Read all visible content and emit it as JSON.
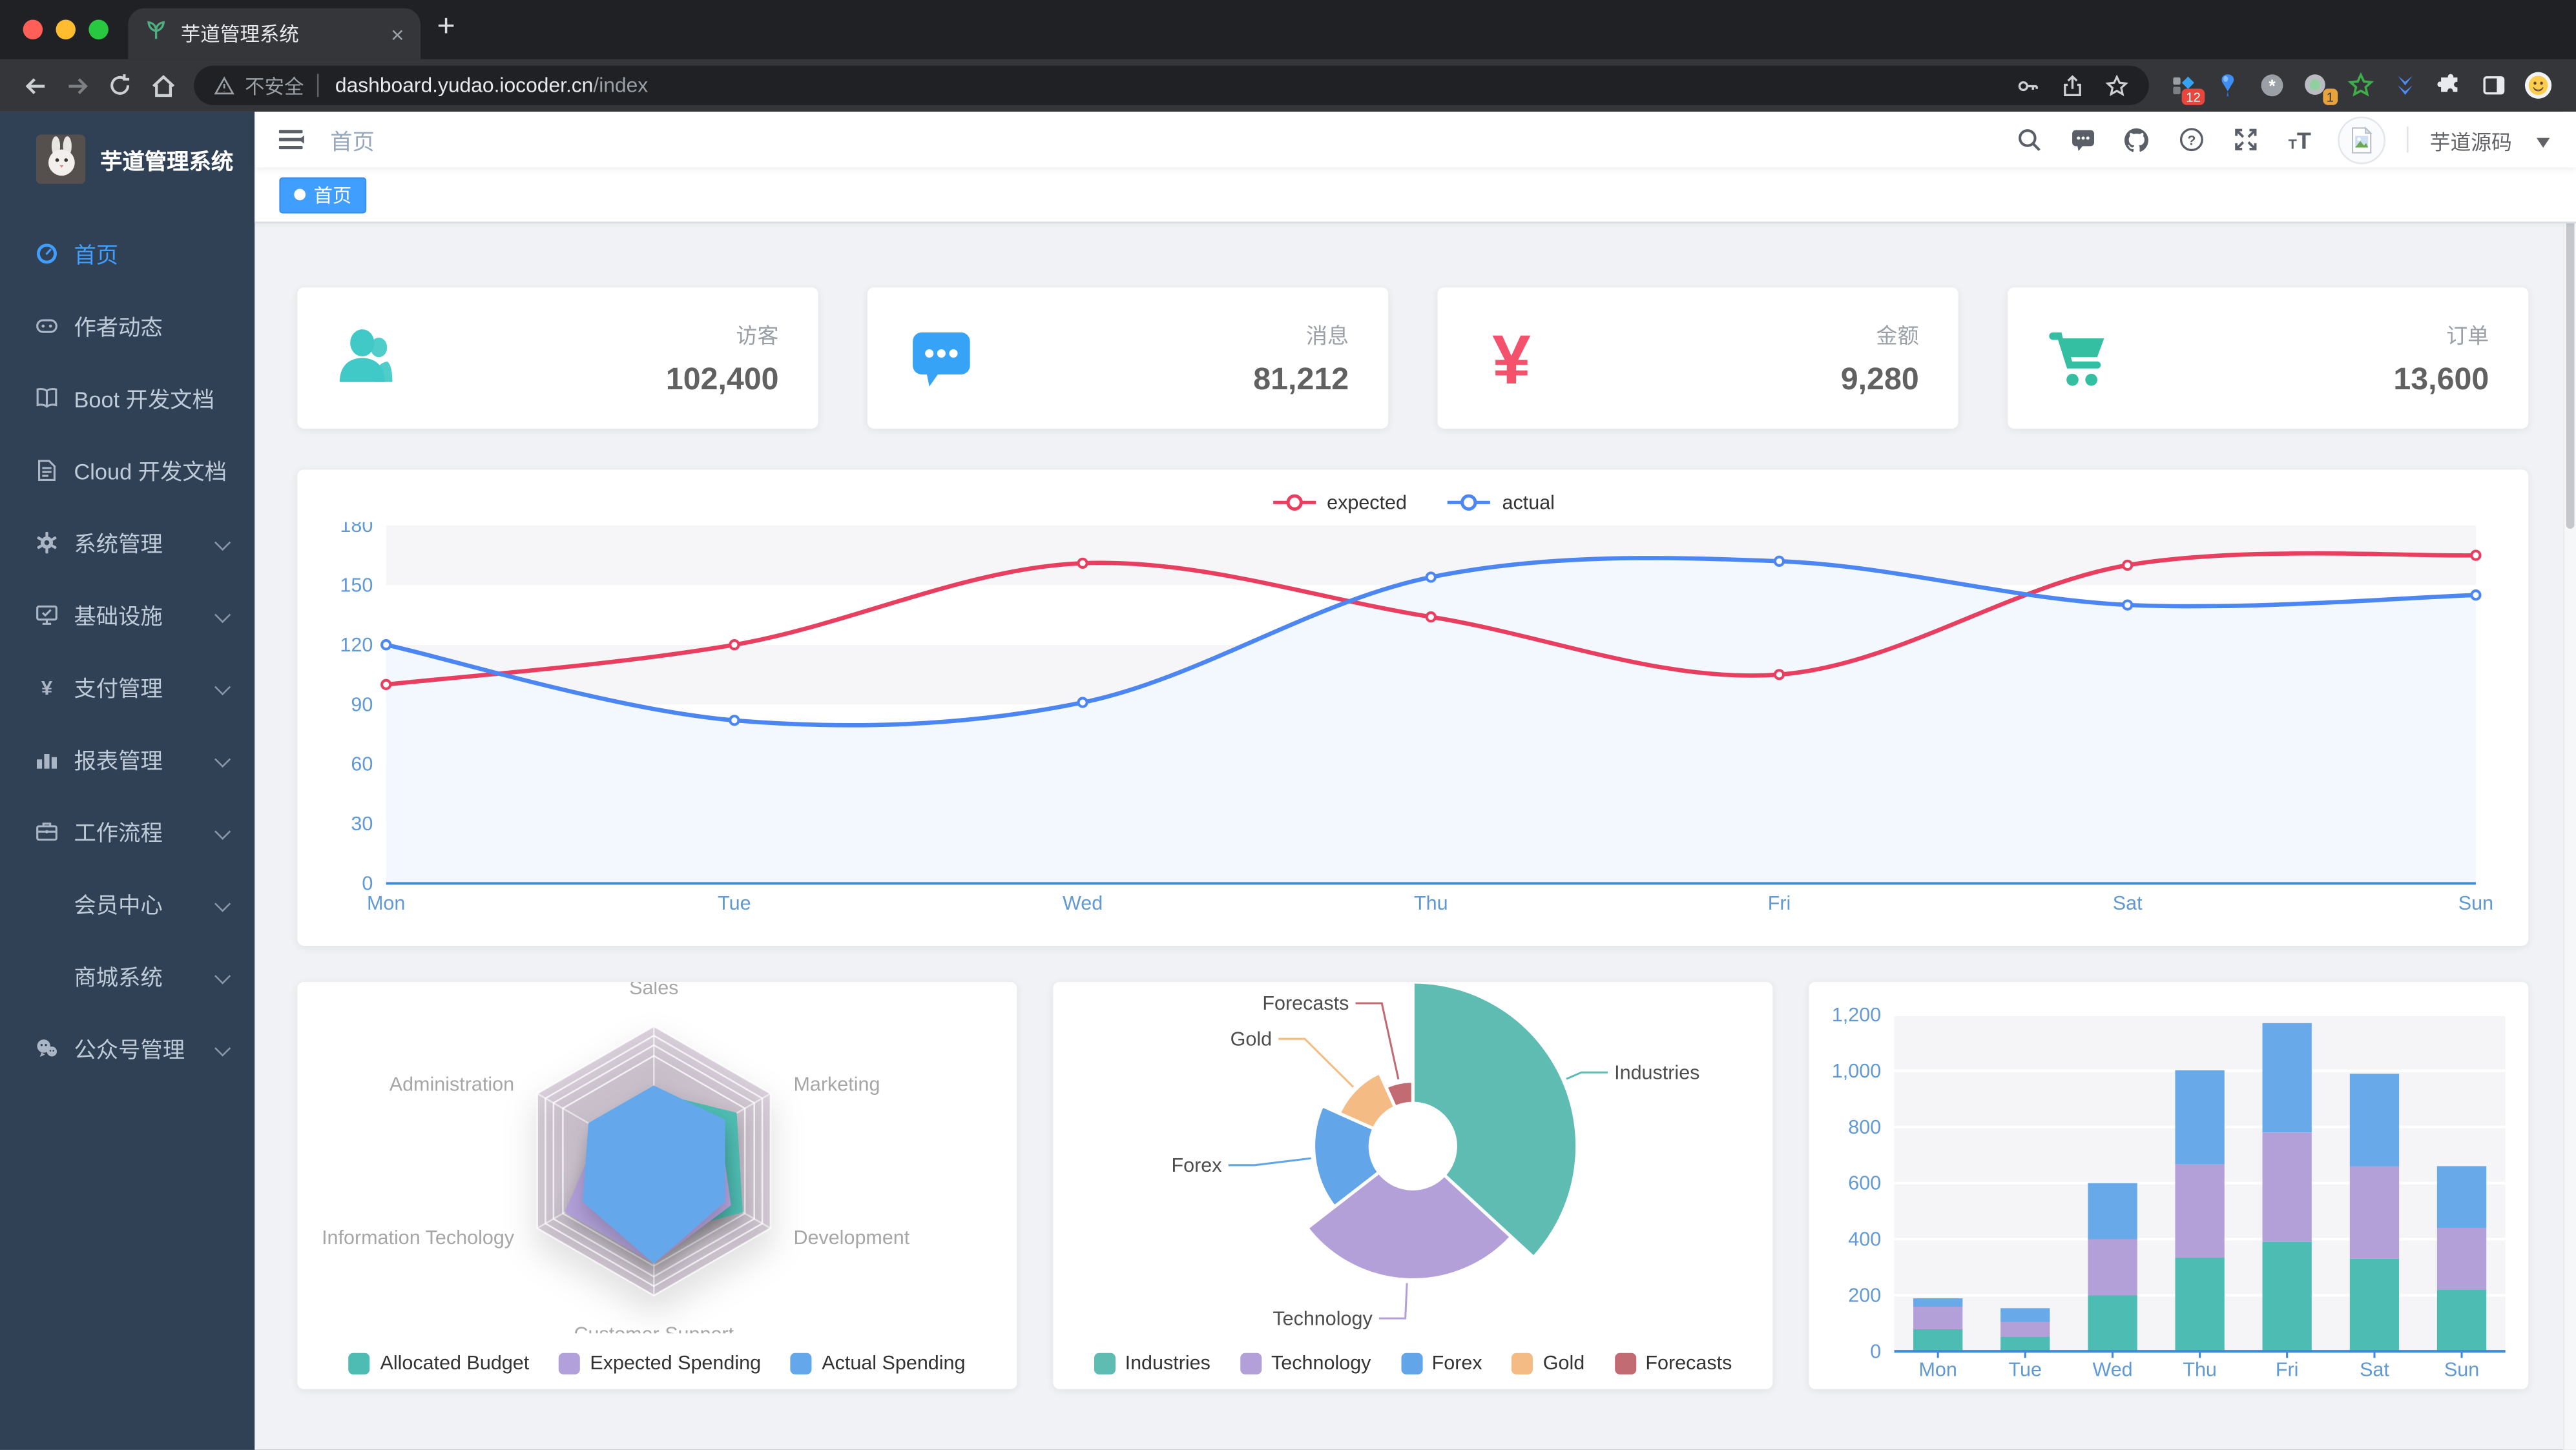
{
  "browser": {
    "tab_title": "芋道管理系统",
    "close_tab": "×",
    "new_tab": "+",
    "security_label": "不安全",
    "url_host": "dashboard.yudao.iocoder.cn",
    "url_path": "/index",
    "ext_badge_1": "12",
    "ext_badge_2": "1"
  },
  "sidebar": {
    "logo_title": "芋道管理系统",
    "active_color": "#409eff",
    "items": [
      {
        "label": "首页",
        "icon": "dashboard-icon",
        "active": true,
        "children": false
      },
      {
        "label": "作者动态",
        "icon": "people-icon",
        "active": false,
        "children": false
      },
      {
        "label": "Boot 开发文档",
        "icon": "book-icon",
        "active": false,
        "children": false
      },
      {
        "label": "Cloud 开发文档",
        "icon": "document-icon",
        "active": false,
        "children": false
      },
      {
        "label": "系统管理",
        "icon": "gear-icon",
        "active": false,
        "children": true
      },
      {
        "label": "基础设施",
        "icon": "monitor-icon",
        "active": false,
        "children": true
      },
      {
        "label": "支付管理",
        "icon": "yen-icon",
        "active": false,
        "children": true
      },
      {
        "label": "报表管理",
        "icon": "chart-icon",
        "active": false,
        "children": true
      },
      {
        "label": "工作流程",
        "icon": "briefcase-icon",
        "active": false,
        "children": true
      },
      {
        "label": "会员中心",
        "icon": null,
        "active": false,
        "children": true
      },
      {
        "label": "商城系统",
        "icon": null,
        "active": false,
        "children": true
      },
      {
        "label": "公众号管理",
        "icon": "wechat-icon",
        "active": false,
        "children": true
      }
    ]
  },
  "navbar": {
    "breadcrumb": "首页",
    "username": "芋道源码"
  },
  "tags": [
    {
      "label": "首页",
      "active": true
    }
  ],
  "stats": [
    {
      "label": "访客",
      "value": "102,400",
      "icon": "stat-people-icon",
      "color": "#40c9c6"
    },
    {
      "label": "消息",
      "value": "81,212",
      "icon": "stat-message-icon",
      "color": "#36a3f7"
    },
    {
      "label": "金额",
      "value": "9,280",
      "icon": "stat-money-icon",
      "color": "#f4516c"
    },
    {
      "label": "订单",
      "value": "13,600",
      "icon": "stat-cart-icon",
      "color": "#34bfa3"
    }
  ],
  "chart_data": [
    {
      "id": "weekly-line",
      "type": "line",
      "x": [
        "Mon",
        "Tue",
        "Wed",
        "Thu",
        "Fri",
        "Sat",
        "Sun"
      ],
      "series": [
        {
          "name": "expected",
          "color": "#e83e5f",
          "values": [
            100,
            120,
            161,
            134,
            105,
            160,
            165
          ]
        },
        {
          "name": "actual",
          "color": "#4b86f2",
          "area_color": "#f3f8ff",
          "values": [
            120,
            82,
            91,
            154,
            162,
            140,
            145
          ]
        }
      ],
      "ylim": [
        0,
        180
      ],
      "ytick_step": 30,
      "axis_label_color": "#6099d4",
      "axis_line_color": "#408ad6",
      "grid": true,
      "legend_position": "top"
    },
    {
      "id": "budget-radar",
      "type": "radar",
      "indicators": [
        {
          "name": "Sales",
          "max": 10000
        },
        {
          "name": "Administration",
          "max": 20000
        },
        {
          "name": "Information Techology",
          "max": 20000
        },
        {
          "name": "Customer Support",
          "max": 20000
        },
        {
          "name": "Development",
          "max": 20000
        },
        {
          "name": "Marketing",
          "max": 20000
        }
      ],
      "series": [
        {
          "name": "Allocated Budget",
          "color": "#4ebcb2",
          "values": [
            5000,
            7000,
            12000,
            11000,
            15000,
            14000
          ]
        },
        {
          "name": "Expected Spending",
          "color": "#b1a0d9",
          "values": [
            4000,
            9000,
            15000,
            15000,
            13000,
            11000
          ]
        },
        {
          "name": "Actual Spending",
          "color": "#64a8eb",
          "values": [
            5500,
            11000,
            12000,
            15000,
            12000,
            12000
          ]
        }
      ],
      "grid_color": "rgba(127,95,132,0.28)",
      "legend_position": "bottom"
    },
    {
      "id": "sector-pie",
      "type": "pie",
      "rose": true,
      "slices": [
        {
          "name": "Industries",
          "value": 320,
          "color": "#5fbcb3"
        },
        {
          "name": "Technology",
          "value": 240,
          "color": "#b3a0d9"
        },
        {
          "name": "Forex",
          "value": 149,
          "color": "#62a5e8"
        },
        {
          "name": "Gold",
          "value": 100,
          "color": "#f4bc84"
        },
        {
          "name": "Forecasts",
          "value": 59,
          "color": "#c26b72"
        }
      ],
      "legend_position": "bottom"
    },
    {
      "id": "weekly-bar",
      "type": "bar",
      "stacked": true,
      "categories": [
        "Mon",
        "Tue",
        "Wed",
        "Thu",
        "Fri",
        "Sat",
        "Sun"
      ],
      "series": [
        {
          "color": "#4dbdb3",
          "values": [
            79,
            52,
            200,
            334,
            390,
            330,
            220
          ]
        },
        {
          "color": "#b3a0d8",
          "values": [
            80,
            52,
            200,
            334,
            390,
            330,
            220
          ]
        },
        {
          "color": "#67a9e9",
          "values": [
            30,
            50,
            200,
            334,
            390,
            330,
            220
          ]
        }
      ],
      "ylim": [
        0,
        1200
      ],
      "ytick_step": 200,
      "ytick_labels": [
        "0",
        "200",
        "400",
        "600",
        "800",
        "1,000",
        "1,200"
      ],
      "axis_label_color": "#6099d4",
      "axis_line_color": "#408ad6"
    }
  ]
}
